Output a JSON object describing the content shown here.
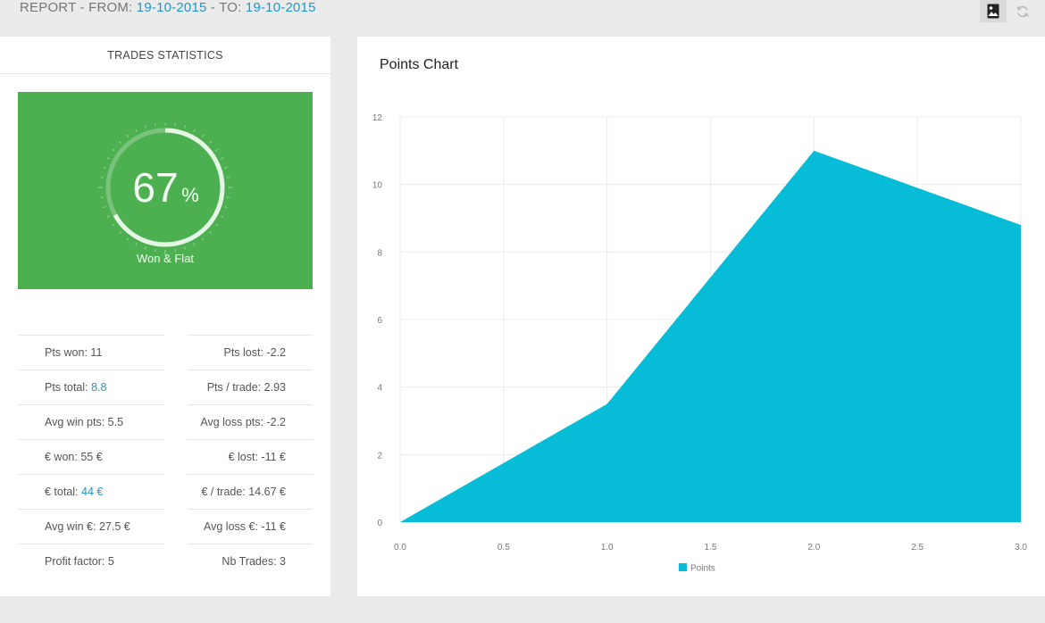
{
  "header": {
    "prefix": "REPORT - FROM:",
    "from_date": "19-10-2015",
    "separator": " - TO:",
    "to_date": "19-10-2015"
  },
  "toolbar": {
    "image_button_icon": "image-icon",
    "refresh_button_icon": "refresh-icon"
  },
  "left_panel": {
    "title": "TRADES STATISTICS",
    "gauge": {
      "value": "67",
      "unit": "%",
      "label": "Won & Flat",
      "fraction": 0.67,
      "color": "#4caf50"
    },
    "stats": {
      "pts_won_label": "Pts won:",
      "pts_won_value": "11",
      "pts_lost_label": "Pts lost:",
      "pts_lost_value": "-2.2",
      "pts_total_label": "Pts total:",
      "pts_total_value": "8.8",
      "pts_trade_label": "Pts / trade:",
      "pts_trade_value": "2.93",
      "avg_win_pts_label": "Avg win pts:",
      "avg_win_pts_value": "5.5",
      "avg_loss_pts_label": "Avg loss pts:",
      "avg_loss_pts_value": "-2.2",
      "eur_won_label": "€ won:",
      "eur_won_value": "55 €",
      "eur_lost_label": "€ lost:",
      "eur_lost_value": "-11 €",
      "eur_total_label": "€ total:",
      "eur_total_value": "44 €",
      "eur_trade_label": "€ / trade:",
      "eur_trade_value": "14.67 €",
      "avg_win_eur_label": "Avg win €:",
      "avg_win_eur_value": "27.5 €",
      "avg_loss_eur_label": "Avg loss €:",
      "avg_loss_eur_value": "-11 €",
      "profit_factor_label": "Profit factor:",
      "profit_factor_value": "5",
      "nb_trades_label": "Nb Trades:",
      "nb_trades_value": "3"
    }
  },
  "right_panel": {
    "title": "Points Chart"
  },
  "chart_data": {
    "type": "area",
    "title": "Points Chart",
    "x": [
      0,
      1,
      2,
      3
    ],
    "series": [
      {
        "name": "Points",
        "values": [
          0,
          3.5,
          11,
          8.8
        ],
        "color": "#06bcd6"
      }
    ],
    "xlim": [
      0,
      3
    ],
    "ylim": [
      0,
      12
    ],
    "x_ticks": [
      "0.0",
      "0.5",
      "1.0",
      "1.5",
      "2.0",
      "2.5",
      "3.0"
    ],
    "y_ticks": [
      "0",
      "2",
      "4",
      "6",
      "8",
      "10",
      "12"
    ],
    "grid": true,
    "legend": "bottom-center"
  }
}
